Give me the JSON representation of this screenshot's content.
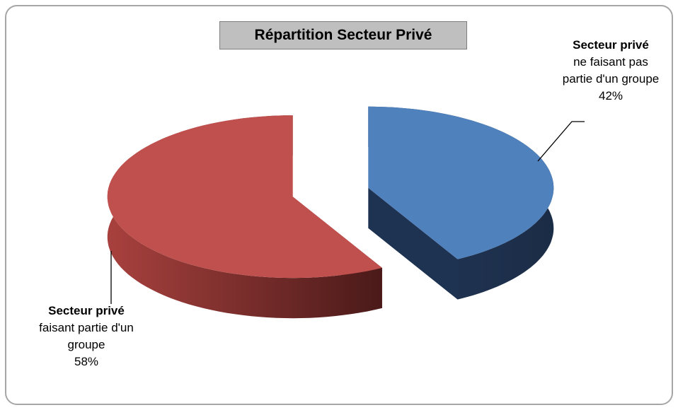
{
  "chart_data": {
    "type": "pie3d",
    "title": "Répartition Secteur Privé",
    "categories": [
      {
        "title": "Secteur privé",
        "detail": "ne faisant pas partie d'un groupe"
      },
      {
        "title": "Secteur privé",
        "detail": "faisant partie d'un groupe"
      }
    ],
    "values": [
      42,
      58
    ],
    "value_labels": [
      "42%",
      "58%"
    ],
    "colors": [
      "#4f81bd",
      "#c0504d"
    ]
  }
}
